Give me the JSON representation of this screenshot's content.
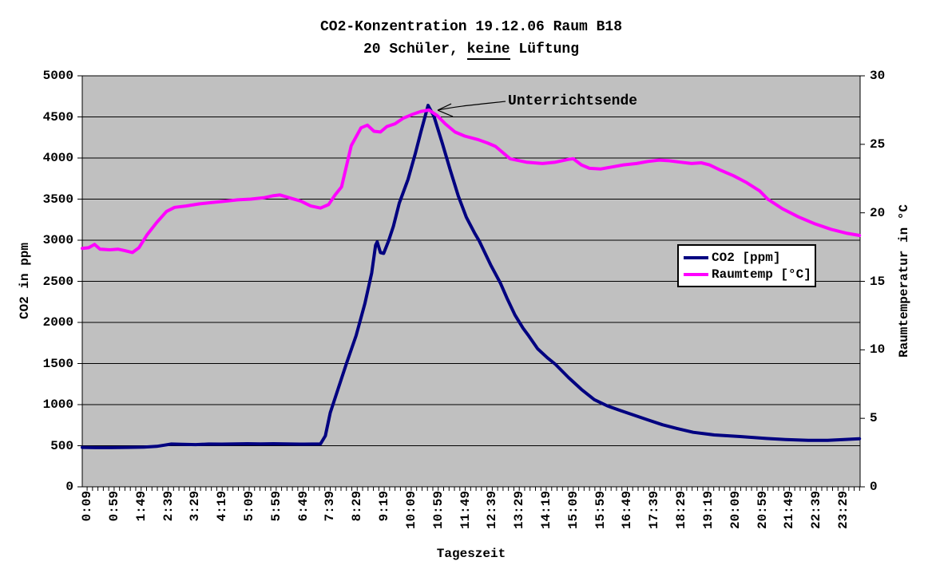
{
  "title": {
    "line1": "CO2-Konzentration 19.12.06 Raum B18",
    "line2_prefix": "20 Schüler, ",
    "line2_underline": "keine",
    "line2_suffix": " Lüftung"
  },
  "annotation": {
    "text": "Unterrichtsende"
  },
  "legend": {
    "items": [
      {
        "label": "CO2 [ppm]",
        "color": "#000080"
      },
      {
        "label": "Raumtemp [°C]",
        "color": "#FF00FF"
      }
    ]
  },
  "chart_data": {
    "type": "line",
    "title": "CO2-Konzentration 19.12.06 Raum B18 — 20 Schüler, keine Lüftung",
    "xlabel": "Tageszeit",
    "ylabel_left": "CO2 in ppm",
    "ylabel_right": "Raumtemperatur in °C",
    "plot_bg": "#C0C0C0",
    "grid": "horizontal-only",
    "legend_position": "middle-right",
    "xlim_hours": [
      0,
      24
    ],
    "ylim_left": [
      0,
      5000
    ],
    "ytick_step_left": 500,
    "ylim_right": [
      0,
      30
    ],
    "ytick_step_right": 5,
    "x_minor_tick_minutes": 10,
    "x_tick_labels": [
      "0:09",
      "0:59",
      "1:49",
      "2:39",
      "3:29",
      "4:19",
      "5:09",
      "5:59",
      "6:49",
      "7:39",
      "8:29",
      "9:19",
      "10:09",
      "10:59",
      "11:49",
      "12:39",
      "13:29",
      "14:19",
      "15:09",
      "15:59",
      "16:49",
      "17:39",
      "18:29",
      "19:19",
      "20:09",
      "20:59",
      "21:49",
      "22:39",
      "23:29"
    ],
    "annotation": {
      "text": "Unterrichtsende",
      "attached_to": "co2-peak"
    },
    "series": [
      {
        "name": "CO2 [ppm]",
        "color": "#000080",
        "axis": "left",
        "unit": "ppm",
        "points": [
          [
            0,
            480
          ],
          [
            0.4,
            477
          ],
          [
            0.9,
            477
          ],
          [
            1.4,
            480
          ],
          [
            1.9,
            483
          ],
          [
            2.3,
            492
          ],
          [
            2.55,
            508
          ],
          [
            2.75,
            520
          ],
          [
            3.1,
            517
          ],
          [
            3.5,
            514
          ],
          [
            3.9,
            520
          ],
          [
            4.3,
            519
          ],
          [
            4.7,
            521
          ],
          [
            5.1,
            524
          ],
          [
            5.5,
            522
          ],
          [
            5.9,
            524
          ],
          [
            6.3,
            522
          ],
          [
            6.7,
            519
          ],
          [
            7.1,
            520
          ],
          [
            7.35,
            522
          ],
          [
            7.5,
            620
          ],
          [
            7.65,
            900
          ],
          [
            7.85,
            1140
          ],
          [
            8.15,
            1500
          ],
          [
            8.45,
            1840
          ],
          [
            8.72,
            2230
          ],
          [
            8.93,
            2600
          ],
          [
            9.05,
            2940
          ],
          [
            9.1,
            2980
          ],
          [
            9.2,
            2850
          ],
          [
            9.3,
            2840
          ],
          [
            9.45,
            2990
          ],
          [
            9.6,
            3170
          ],
          [
            9.78,
            3450
          ],
          [
            10.05,
            3740
          ],
          [
            10.28,
            4060
          ],
          [
            10.45,
            4320
          ],
          [
            10.67,
            4640
          ],
          [
            10.85,
            4510
          ],
          [
            11.1,
            4190
          ],
          [
            11.35,
            3860
          ],
          [
            11.6,
            3540
          ],
          [
            11.85,
            3280
          ],
          [
            12.1,
            3090
          ],
          [
            12.25,
            2990
          ],
          [
            12.6,
            2700
          ],
          [
            12.9,
            2480
          ],
          [
            13.1,
            2300
          ],
          [
            13.35,
            2090
          ],
          [
            13.6,
            1930
          ],
          [
            13.75,
            1850
          ],
          [
            14.05,
            1680
          ],
          [
            14.35,
            1570
          ],
          [
            14.6,
            1490
          ],
          [
            15.0,
            1330
          ],
          [
            15.4,
            1185
          ],
          [
            15.8,
            1060
          ],
          [
            16.2,
            985
          ],
          [
            16.6,
            928
          ],
          [
            17.0,
            875
          ],
          [
            17.45,
            815
          ],
          [
            17.9,
            755
          ],
          [
            18.35,
            710
          ],
          [
            18.85,
            663
          ],
          [
            19.5,
            631
          ],
          [
            20.3,
            612
          ],
          [
            21.1,
            588
          ],
          [
            21.7,
            576
          ],
          [
            22.4,
            566
          ],
          [
            23.0,
            566
          ],
          [
            23.5,
            576
          ],
          [
            23.98,
            585
          ]
        ]
      },
      {
        "name": "Raumtemp [°C]",
        "color": "#FF00FF",
        "axis": "right",
        "unit": "°C",
        "points": [
          [
            0,
            17.4
          ],
          [
            0.2,
            17.45
          ],
          [
            0.38,
            17.7
          ],
          [
            0.55,
            17.35
          ],
          [
            0.85,
            17.3
          ],
          [
            1.1,
            17.35
          ],
          [
            1.3,
            17.25
          ],
          [
            1.55,
            17.1
          ],
          [
            1.75,
            17.45
          ],
          [
            2.0,
            18.4
          ],
          [
            2.3,
            19.3
          ],
          [
            2.6,
            20.1
          ],
          [
            2.85,
            20.4
          ],
          [
            3.2,
            20.5
          ],
          [
            3.6,
            20.65
          ],
          [
            4.0,
            20.75
          ],
          [
            4.4,
            20.85
          ],
          [
            4.8,
            20.95
          ],
          [
            5.2,
            21.0
          ],
          [
            5.6,
            21.1
          ],
          [
            5.9,
            21.25
          ],
          [
            6.1,
            21.3
          ],
          [
            6.45,
            21.05
          ],
          [
            6.75,
            20.85
          ],
          [
            7.05,
            20.5
          ],
          [
            7.35,
            20.35
          ],
          [
            7.6,
            20.6
          ],
          [
            7.8,
            21.3
          ],
          [
            8.0,
            21.9
          ],
          [
            8.3,
            24.9
          ],
          [
            8.6,
            26.2
          ],
          [
            8.8,
            26.4
          ],
          [
            9.0,
            25.95
          ],
          [
            9.2,
            25.9
          ],
          [
            9.4,
            26.3
          ],
          [
            9.65,
            26.5
          ],
          [
            9.9,
            26.9
          ],
          [
            10.2,
            27.2
          ],
          [
            10.45,
            27.4
          ],
          [
            10.7,
            27.5
          ],
          [
            10.95,
            27.1
          ],
          [
            11.2,
            26.5
          ],
          [
            11.5,
            25.9
          ],
          [
            11.8,
            25.6
          ],
          [
            12.2,
            25.35
          ],
          [
            12.5,
            25.1
          ],
          [
            12.75,
            24.85
          ],
          [
            13.2,
            23.95
          ],
          [
            13.7,
            23.7
          ],
          [
            14.2,
            23.6
          ],
          [
            14.6,
            23.7
          ],
          [
            15.0,
            23.9
          ],
          [
            15.15,
            23.95
          ],
          [
            15.4,
            23.5
          ],
          [
            15.65,
            23.25
          ],
          [
            16.0,
            23.2
          ],
          [
            16.35,
            23.35
          ],
          [
            16.7,
            23.5
          ],
          [
            17.1,
            23.6
          ],
          [
            17.45,
            23.75
          ],
          [
            17.8,
            23.85
          ],
          [
            18.1,
            23.8
          ],
          [
            18.45,
            23.7
          ],
          [
            18.8,
            23.6
          ],
          [
            19.1,
            23.65
          ],
          [
            19.35,
            23.5
          ],
          [
            19.7,
            23.1
          ],
          [
            20.1,
            22.7
          ],
          [
            20.5,
            22.2
          ],
          [
            20.9,
            21.6
          ],
          [
            21.15,
            21.0
          ],
          [
            21.6,
            20.3
          ],
          [
            22.1,
            19.7
          ],
          [
            22.6,
            19.2
          ],
          [
            23.1,
            18.8
          ],
          [
            23.6,
            18.5
          ],
          [
            23.98,
            18.35
          ]
        ]
      }
    ]
  }
}
